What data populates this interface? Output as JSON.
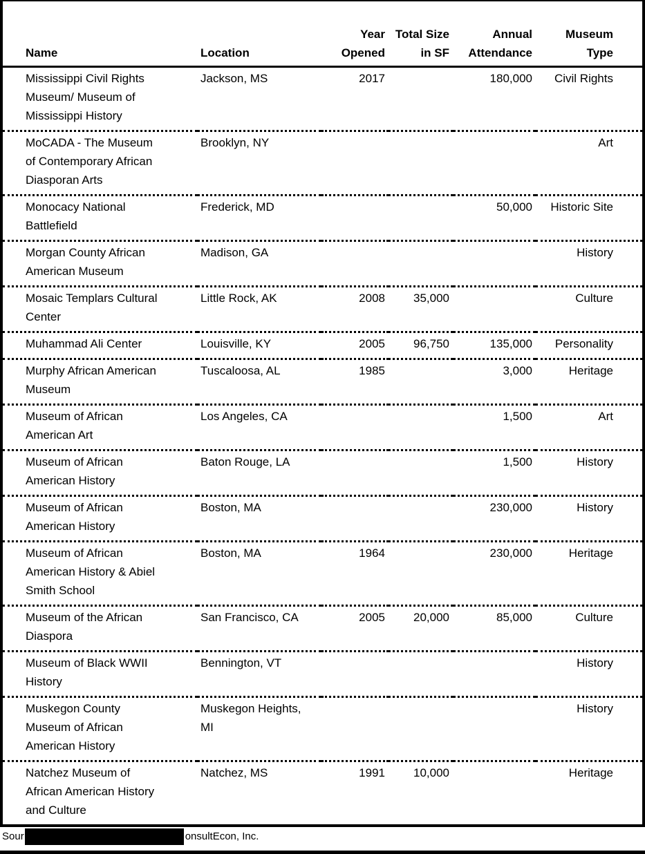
{
  "table": {
    "columns": [
      {
        "line1": "",
        "line2": "Name"
      },
      {
        "line1": "",
        "line2": "Location"
      },
      {
        "line1": "Year",
        "line2": "Opened"
      },
      {
        "line1": "Total Size",
        "line2": "in SF"
      },
      {
        "line1": "Annual",
        "line2": "Attendance"
      },
      {
        "line1": "Museum",
        "line2": "Type"
      }
    ],
    "rows": [
      {
        "name": "Mississippi Civil Rights Museum/ Museum of Mississippi History",
        "location": "Jackson, MS",
        "year_opened": "2017",
        "total_size_sf": "",
        "annual_attendance": "180,000",
        "museum_type": "Civil Rights"
      },
      {
        "name": "MoCADA - The Museum of Contemporary African Diasporan Arts",
        "location": "Brooklyn, NY",
        "year_opened": "",
        "total_size_sf": "",
        "annual_attendance": "",
        "museum_type": "Art"
      },
      {
        "name": "Monocacy National Battlefield",
        "location": "Frederick, MD",
        "year_opened": "",
        "total_size_sf": "",
        "annual_attendance": "50,000",
        "museum_type": "Historic Site"
      },
      {
        "name": "Morgan County African American Museum",
        "location": "Madison, GA",
        "year_opened": "",
        "total_size_sf": "",
        "annual_attendance": "",
        "museum_type": "History"
      },
      {
        "name": "Mosaic Templars Cultural Center",
        "location": "Little Rock, AK",
        "year_opened": "2008",
        "total_size_sf": "35,000",
        "annual_attendance": "",
        "museum_type": "Culture"
      },
      {
        "name": "Muhammad Ali Center",
        "location": "Louisville, KY",
        "year_opened": "2005",
        "total_size_sf": "96,750",
        "annual_attendance": "135,000",
        "museum_type": "Personality"
      },
      {
        "name": "Murphy African American Museum",
        "location": "Tuscaloosa, AL",
        "year_opened": "1985",
        "total_size_sf": "",
        "annual_attendance": "3,000",
        "museum_type": "Heritage"
      },
      {
        "name": "Museum of African American Art",
        "location": "Los Angeles, CA",
        "year_opened": "",
        "total_size_sf": "",
        "annual_attendance": "1,500",
        "museum_type": "Art"
      },
      {
        "name": "Museum of African American History",
        "location": "Baton Rouge, LA",
        "year_opened": "",
        "total_size_sf": "",
        "annual_attendance": "1,500",
        "museum_type": "History"
      },
      {
        "name": "Museum of African American History",
        "location": "Boston, MA",
        "year_opened": "",
        "total_size_sf": "",
        "annual_attendance": "230,000",
        "museum_type": "History"
      },
      {
        "name": "Museum of African American History & Abiel Smith School",
        "location": "Boston, MA",
        "year_opened": "1964",
        "total_size_sf": "",
        "annual_attendance": "230,000",
        "museum_type": "Heritage"
      },
      {
        "name": "Museum of the African Diaspora",
        "location": "San Francisco, CA",
        "year_opened": "2005",
        "total_size_sf": "20,000",
        "annual_attendance": "85,000",
        "museum_type": "Culture"
      },
      {
        "name": "Museum of Black WWII History",
        "location": "Bennington, VT",
        "year_opened": "",
        "total_size_sf": "",
        "annual_attendance": "",
        "museum_type": "History"
      },
      {
        "name": "Muskegon County Museum of African American History",
        "location": "Muskegon Heights, MI",
        "year_opened": "",
        "total_size_sf": "",
        "annual_attendance": "",
        "museum_type": "History"
      },
      {
        "name": "Natchez Museum of African American History and Culture",
        "location": "Natchez, MS",
        "year_opened": "1991",
        "total_size_sf": "10,000",
        "annual_attendance": "",
        "museum_type": "Heritage"
      }
    ]
  },
  "footer": {
    "visible_prefix": "Sour",
    "visible_suffix": "onsultEcon, Inc.",
    "redaction_color": "#000000"
  }
}
